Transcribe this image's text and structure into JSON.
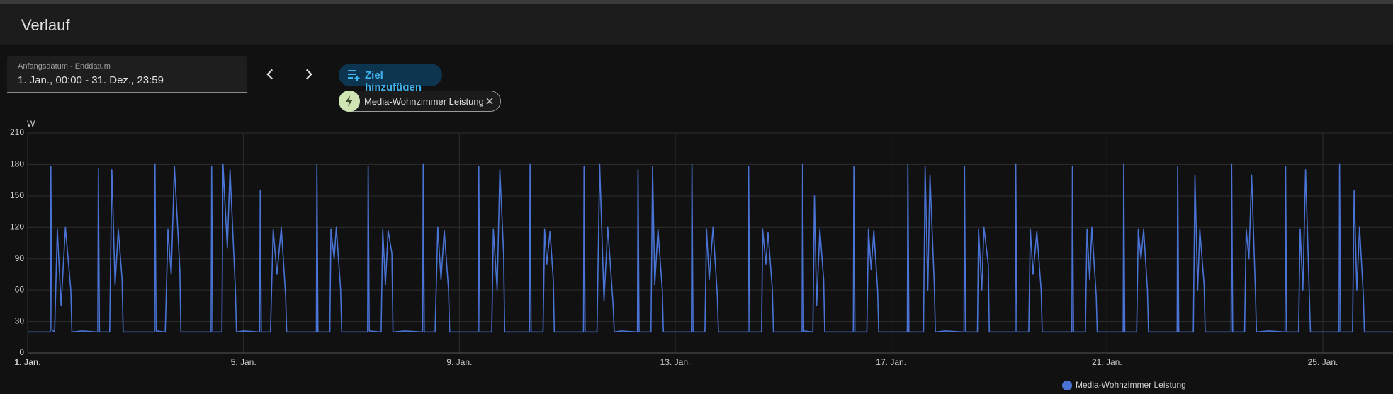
{
  "header": {
    "title": "Verlauf"
  },
  "date_range": {
    "label": "Anfangsdatum - Enddatum",
    "value": "1. Jan., 00:00 - 31. Dez., 23:59"
  },
  "add_target": "Ziel hinzufügen",
  "entity_chip": "Media-Wohnzimmer Leistung",
  "chart_data": {
    "type": "line",
    "y_label": "W",
    "xlim": [
      0,
      25.3
    ],
    "ylim": [
      0,
      210
    ],
    "xticks": [
      {
        "value": 0,
        "label": "1. Jan."
      },
      {
        "value": 4,
        "label": "5. Jan."
      },
      {
        "value": 8,
        "label": "9. Jan."
      },
      {
        "value": 12,
        "label": "13. Jan."
      },
      {
        "value": 16,
        "label": "17. Jan."
      },
      {
        "value": 20,
        "label": "21. Jan."
      },
      {
        "value": 24,
        "label": "25. Jan."
      }
    ],
    "yticks": [
      0,
      30,
      60,
      90,
      120,
      150,
      180,
      210
    ],
    "grid": true,
    "legend": "bottom",
    "x": [
      0,
      0.42,
      0.43,
      0.45,
      0.5,
      0.55,
      0.62,
      0.7,
      0.8,
      0.82,
      1,
      1.3,
      1.31,
      1.33,
      1.52,
      1.56,
      1.62,
      1.68,
      1.75,
      1.77,
      2,
      2.35,
      2.36,
      2.38,
      2.55,
      2.6,
      2.66,
      2.72,
      2.82,
      2.84,
      3,
      3.4,
      3.41,
      3.43,
      3.6,
      3.62,
      3.7,
      3.75,
      3.85,
      3.87,
      4,
      4.3,
      4.31,
      4.33,
      4.5,
      4.55,
      4.62,
      4.7,
      4.78,
      4.8,
      5,
      5.35,
      5.36,
      5.38,
      5.6,
      5.62,
      5.68,
      5.72,
      5.8,
      5.82,
      6,
      6.3,
      6.31,
      6.33,
      6.55,
      6.58,
      6.63,
      6.68,
      6.75,
      6.77,
      7,
      7.32,
      7.33,
      7.35,
      7.55,
      7.6,
      7.66,
      7.72,
      7.8,
      7.82,
      8,
      8.35,
      8.36,
      8.38,
      8.6,
      8.63,
      8.7,
      8.75,
      8.82,
      8.84,
      9,
      9.3,
      9.31,
      9.33,
      9.55,
      9.58,
      9.62,
      9.68,
      9.74,
      9.76,
      10,
      10.3,
      10.31,
      10.33,
      10.55,
      10.6,
      10.68,
      10.75,
      10.85,
      10.87,
      11,
      11.3,
      11.31,
      11.33,
      11.55,
      11.58,
      11.62,
      11.68,
      11.76,
      11.78,
      12,
      12.3,
      12.31,
      12.33,
      12.55,
      12.58,
      12.63,
      12.7,
      12.78,
      12.8,
      13,
      13.35,
      13.36,
      13.38,
      13.6,
      13.62,
      13.68,
      13.72,
      13.8,
      13.82,
      14,
      14.35,
      14.36,
      14.38,
      14.55,
      14.58,
      14.62,
      14.68,
      14.75,
      14.77,
      15,
      15.3,
      15.31,
      15.33,
      15.55,
      15.58,
      15.63,
      15.68,
      15.75,
      15.77,
      16,
      16.3,
      16.31,
      16.33,
      16.6,
      16.63,
      16.68,
      16.72,
      16.8,
      16.82,
      17,
      17.35,
      17.36,
      17.38,
      17.6,
      17.62,
      17.68,
      17.72,
      17.8,
      17.82,
      18,
      18.3,
      18.31,
      18.33,
      18.55,
      18.58,
      18.63,
      18.7,
      18.78,
      18.8,
      19,
      19.35,
      19.36,
      19.38,
      19.6,
      19.63,
      19.68,
      19.72,
      19.8,
      19.82,
      20,
      20.3,
      20.31,
      20.33,
      20.55,
      20.58,
      20.63,
      20.68,
      20.75,
      20.77,
      21,
      21.3,
      21.31,
      21.33,
      21.6,
      21.63,
      21.68,
      21.72,
      21.8,
      21.82,
      22,
      22.3,
      22.31,
      22.33,
      22.55,
      22.58,
      22.63,
      22.68,
      22.75,
      22.77,
      23,
      23.3,
      23.31,
      23.33,
      23.55,
      23.58,
      23.63,
      23.68,
      23.75,
      23.77,
      24,
      24.3,
      24.31,
      24.33,
      24.55,
      24.58,
      24.63,
      24.68,
      24.75,
      24.77,
      25.3
    ],
    "series": [
      {
        "name": "Media-Wohnzimmer Leistung",
        "color": "#4a73d6",
        "values": [
          20,
          20,
          178,
          22,
          20,
          118,
          45,
          120,
          60,
          20,
          21,
          20,
          176,
          20,
          20,
          175,
          65,
          118,
          70,
          20,
          20,
          20,
          180,
          21,
          20,
          118,
          75,
          178,
          80,
          20,
          20,
          20,
          178,
          20,
          20,
          180,
          100,
          175,
          60,
          20,
          21,
          20,
          155,
          20,
          20,
          118,
          75,
          120,
          55,
          20,
          20,
          20,
          180,
          20,
          20,
          118,
          90,
          120,
          60,
          20,
          20,
          20,
          178,
          21,
          20,
          118,
          65,
          117,
          95,
          20,
          21,
          20,
          180,
          20,
          20,
          120,
          70,
          117,
          60,
          20,
          20,
          20,
          178,
          20,
          20,
          118,
          60,
          175,
          95,
          20,
          20,
          20,
          180,
          20,
          20,
          118,
          85,
          116,
          70,
          20,
          20,
          20,
          178,
          20,
          20,
          180,
          50,
          120,
          45,
          20,
          21,
          20,
          175,
          20,
          20,
          178,
          65,
          118,
          60,
          20,
          20,
          20,
          180,
          20,
          20,
          118,
          70,
          120,
          55,
          20,
          20,
          20,
          178,
          20,
          20,
          118,
          85,
          115,
          60,
          20,
          20,
          20,
          180,
          21,
          20,
          150,
          45,
          118,
          70,
          20,
          20,
          20,
          178,
          20,
          20,
          118,
          80,
          117,
          60,
          20,
          20,
          20,
          180,
          20,
          20,
          178,
          60,
          170,
          65,
          20,
          21,
          20,
          178,
          20,
          20,
          118,
          60,
          120,
          85,
          20,
          20,
          20,
          180,
          20,
          20,
          118,
          75,
          116,
          60,
          20,
          20,
          20,
          178,
          20,
          20,
          118,
          70,
          120,
          55,
          20,
          20,
          20,
          180,
          20,
          20,
          118,
          90,
          118,
          60,
          20,
          20,
          20,
          178,
          20,
          20,
          170,
          60,
          118,
          65,
          20,
          20,
          20,
          180,
          20,
          20,
          118,
          90,
          170,
          60,
          20,
          21,
          20,
          178,
          20,
          20,
          118,
          60,
          175,
          55,
          20,
          20,
          20,
          180,
          20,
          20,
          155,
          60,
          120,
          55,
          20,
          20
        ]
      }
    ]
  }
}
